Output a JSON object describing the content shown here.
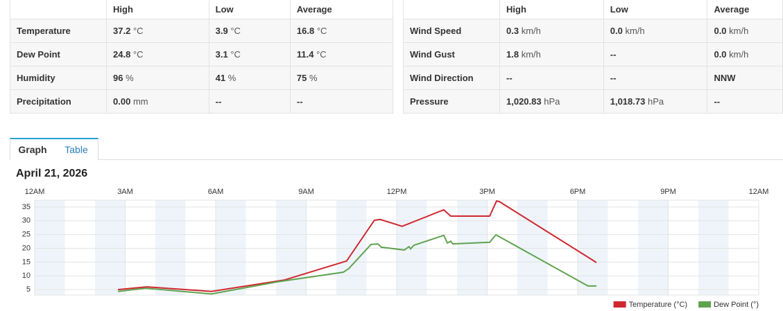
{
  "tables": [
    {
      "header": [
        "High",
        "Low",
        "Average"
      ],
      "rows": [
        {
          "label": "Temperature",
          "cells": [
            {
              "v": "37.2",
              "u": "°C"
            },
            {
              "v": "3.9",
              "u": "°C"
            },
            {
              "v": "16.8",
              "u": "°C"
            }
          ]
        },
        {
          "label": "Dew Point",
          "cells": [
            {
              "v": "24.8",
              "u": "°C"
            },
            {
              "v": "3.1",
              "u": "°C"
            },
            {
              "v": "11.4",
              "u": "°C"
            }
          ]
        },
        {
          "label": "Humidity",
          "cells": [
            {
              "v": "96",
              "u": "%"
            },
            {
              "v": "41",
              "u": "%"
            },
            {
              "v": "75",
              "u": "%"
            }
          ]
        },
        {
          "label": "Precipitation",
          "cells": [
            {
              "v": "0.00",
              "u": "mm"
            },
            {
              "v": "--"
            },
            {
              "v": "--"
            }
          ]
        }
      ]
    },
    {
      "header": [
        "High",
        "Low",
        "Average"
      ],
      "rows": [
        {
          "label": "Wind Speed",
          "cells": [
            {
              "v": "0.3",
              "u": "km/h"
            },
            {
              "v": "0.0",
              "u": "km/h"
            },
            {
              "v": "0.0",
              "u": "km/h"
            }
          ]
        },
        {
          "label": "Wind Gust",
          "cells": [
            {
              "v": "1.8",
              "u": "km/h"
            },
            {
              "v": "--"
            },
            {
              "v": "0.0",
              "u": "km/h"
            }
          ]
        },
        {
          "label": "Wind Direction",
          "cells": [
            {
              "v": "--"
            },
            {
              "v": "--"
            },
            {
              "v": "NNW"
            }
          ]
        },
        {
          "label": "Pressure",
          "cells": [
            {
              "v": "1,020.83",
              "u": "hPa"
            },
            {
              "v": "1,018.73",
              "u": "hPa"
            },
            {
              "v": "--"
            }
          ]
        }
      ]
    }
  ],
  "tabs": [
    "Graph",
    "Table"
  ],
  "date": "April 21, 2026",
  "chart_data": {
    "type": "line",
    "xlim": [
      0,
      24
    ],
    "xticks": [
      {
        "value": 0,
        "label": "12AM"
      },
      {
        "value": 3,
        "label": "3AM"
      },
      {
        "value": 6,
        "label": "6AM"
      },
      {
        "value": 9,
        "label": "9AM"
      },
      {
        "value": 12,
        "label": "12PM"
      },
      {
        "value": 15,
        "label": "3PM"
      },
      {
        "value": 18,
        "label": "6PM"
      },
      {
        "value": 21,
        "label": "9PM"
      },
      {
        "value": 24,
        "label": "12AM"
      }
    ],
    "ylim": [
      3,
      37.5
    ],
    "yticks": [
      5,
      10,
      15,
      20,
      25,
      30,
      35
    ],
    "grid": true,
    "legend": "bottom-right",
    "series": [
      {
        "name": "Temperature (°C)",
        "color": "#d0272f",
        "x": [
          2.76,
          3.72,
          5.86,
          8.28,
          10.34,
          11.26,
          11.45,
          12.18,
          12.41,
          12.57,
          13.56,
          13.79,
          15.08,
          15.31,
          15.4,
          18.44,
          18.62
        ],
        "values": [
          5.0,
          6.0,
          4.3,
          8.5,
          15.4,
          30.2,
          30.5,
          28.0,
          29.0,
          29.7,
          34.0,
          31.7,
          31.7,
          37.2,
          37.0,
          16.1,
          14.8
        ]
      },
      {
        "name": "Dew Point (°)",
        "color": "#5ea34e",
        "x": [
          2.76,
          3.68,
          5.86,
          8.05,
          8.97,
          10.23,
          10.41,
          11.15,
          11.38,
          11.49,
          12.25,
          12.41,
          12.46,
          12.57,
          13.56,
          13.68,
          13.79,
          13.86,
          15.08,
          15.29,
          18.34,
          18.62
        ],
        "values": [
          4.3,
          5.5,
          3.4,
          7.8,
          9.3,
          11.3,
          12.6,
          21.4,
          21.6,
          20.4,
          19.4,
          20.6,
          19.8,
          21.1,
          24.7,
          21.9,
          22.6,
          21.6,
          22.2,
          24.9,
          6.3,
          6.3
        ]
      }
    ]
  }
}
